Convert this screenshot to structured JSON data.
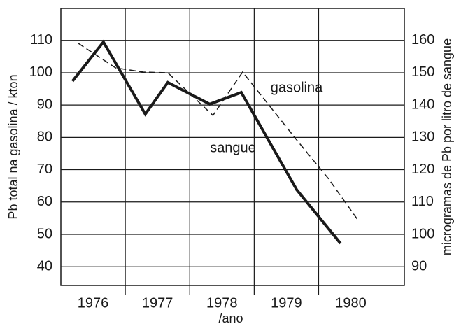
{
  "chart_data": {
    "type": "line",
    "ylabel": "Pb total na gasolina / kton",
    "y2label": "microgramas de Pb por litro de sangue",
    "xlabel": "/ano",
    "xlim": [
      1976,
      1981.33
    ],
    "xticks": [
      {
        "value": 1976.5,
        "label": "1976"
      },
      {
        "value": 1977.5,
        "label": "1977"
      },
      {
        "value": 1978.5,
        "label": "1978"
      },
      {
        "value": 1979.5,
        "label": "1979"
      },
      {
        "value": 1980.5,
        "label": "1980"
      }
    ],
    "xgrid": [
      1977,
      1978,
      1979,
      1980
    ],
    "ylim": [
      34.2,
      119.9
    ],
    "yticks": [
      40,
      50,
      60,
      70,
      80,
      90,
      100,
      110
    ],
    "y2lim": [
      84.2,
      169.9
    ],
    "y2ticks": [
      90,
      100,
      110,
      120,
      130,
      140,
      150,
      160
    ],
    "grid": true,
    "series": [
      {
        "name": "sangue",
        "color": "#1a1a1a",
        "style": "solid",
        "axis": "y2",
        "x": [
          1976.18,
          1976.66,
          1977.31,
          1977.66,
          1978.31,
          1978.8,
          1979.66,
          1980.34
        ],
        "values": [
          147.4,
          159.5,
          137.2,
          147,
          140.3,
          143.9,
          113.8,
          97.2
        ]
      },
      {
        "name": "gasolina",
        "color": "#1a1a1a",
        "style": "dashed",
        "axis": "y",
        "x": [
          1976.27,
          1976.85,
          1977.28,
          1977.66,
          1978.36,
          1978.82,
          1979.66,
          1980.15,
          1980.6
        ],
        "values": [
          109.1,
          101.5,
          100.2,
          100,
          86.8,
          100.2,
          79.2,
          67.3,
          54.7
        ]
      }
    ]
  }
}
